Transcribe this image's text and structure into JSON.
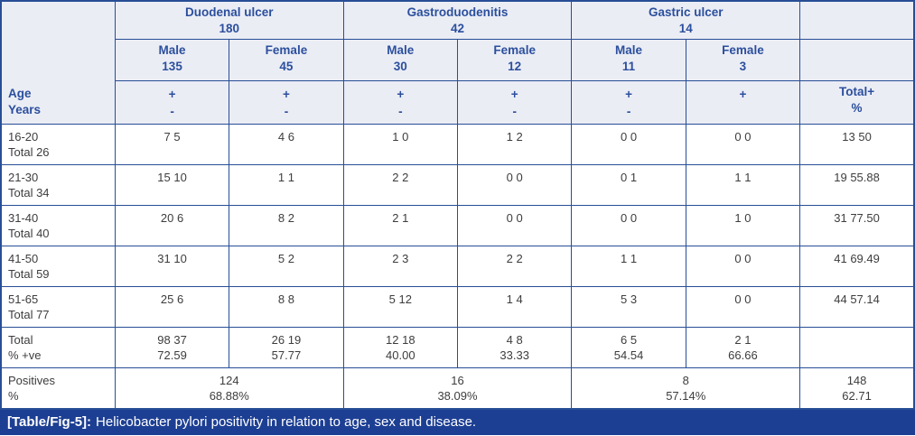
{
  "table": {
    "header": {
      "age_col": [
        "Age",
        "Years"
      ],
      "total_col": [
        "Total+",
        "%"
      ],
      "diseases": [
        {
          "name": "Duodenal ulcer",
          "count": "180"
        },
        {
          "name": "Gastroduodenitis",
          "count": "42"
        },
        {
          "name": "Gastric ulcer",
          "count": "14"
        }
      ],
      "genders": [
        {
          "label": "Male",
          "count": "135"
        },
        {
          "label": "Female",
          "count": "45"
        },
        {
          "label": "Male",
          "count": "30"
        },
        {
          "label": "Female",
          "count": "12"
        },
        {
          "label": "Male",
          "count": "11"
        },
        {
          "label": "Female",
          "count": "3"
        }
      ],
      "signs": [
        {
          "plus": "+",
          "minus": "-"
        },
        {
          "plus": "+",
          "minus": "-"
        },
        {
          "plus": "+",
          "minus": "-"
        },
        {
          "plus": "+",
          "minus": "-"
        },
        {
          "plus": "+",
          "minus": "-"
        },
        {
          "plus": "+",
          "minus": ""
        }
      ]
    },
    "rows": [
      {
        "age": "16-20",
        "age_total": "Total 26",
        "cells": [
          "7 5",
          "4 6",
          "1 0",
          "1 2",
          "0 0",
          "0 0"
        ],
        "total": "13 50"
      },
      {
        "age": "21-30",
        "age_total": "Total 34",
        "cells": [
          "15 10",
          "1 1",
          "2 2",
          "0 0",
          "0 1",
          "1 1"
        ],
        "total": "19 55.88"
      },
      {
        "age": "31-40",
        "age_total": "Total 40",
        "cells": [
          "20 6",
          "8 2",
          "2 1",
          "0 0",
          "0 0",
          "1 0"
        ],
        "total": "31 77.50"
      },
      {
        "age": "41-50",
        "age_total": "Total 59",
        "cells": [
          "31 10",
          "5 2",
          "2 3",
          "2 2",
          "1 1",
          "0 0"
        ],
        "total": "41 69.49"
      },
      {
        "age": "51-65",
        "age_total": "Total 77",
        "cells": [
          "25 6",
          "8 8",
          "5 12",
          "1 4",
          "5 3",
          "0 0"
        ],
        "total": "44 57.14"
      }
    ],
    "total_row": {
      "label": [
        "Total",
        "% +ve"
      ],
      "cells": [
        [
          "98 37",
          "72.59"
        ],
        [
          "26 19",
          "57.77"
        ],
        [
          "12 18",
          "40.00"
        ],
        [
          "4 8",
          "33.33"
        ],
        [
          "6 5",
          "54.54"
        ],
        [
          "2 1",
          "66.66"
        ]
      ],
      "total": ""
    },
    "positives_row": {
      "label": [
        "Positives",
        "%"
      ],
      "groups": [
        [
          "124",
          "68.88%"
        ],
        [
          "16",
          "38.09%"
        ],
        [
          "8",
          "57.14%"
        ]
      ],
      "total": [
        "148",
        "62.71"
      ]
    }
  },
  "caption": {
    "tag": "[Table/Fig-5]:",
    "text": "Helicobacter pylori positivity in relation to age, sex and disease."
  },
  "colors": {
    "border": "#274e96",
    "header_bg": "#ebedf5",
    "header_text": "#2b4f9d",
    "body_text": "#3d3d3d",
    "caption_bg": "#1d3f93",
    "caption_text": "#ffffff"
  }
}
